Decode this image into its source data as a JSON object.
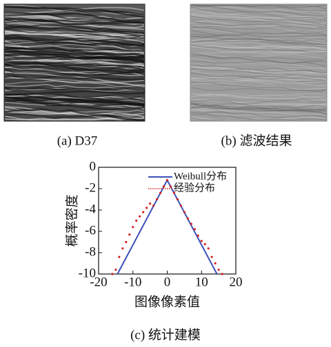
{
  "captions": {
    "a": "(a)  D37",
    "b": "(b)  滤波结果",
    "c": "(c)  统计建模"
  },
  "chart_data": {
    "type": "line",
    "xlabel": "图像像素值",
    "ylabel": "概率密度",
    "xlim": [
      -20,
      20
    ],
    "xticks": [
      -20,
      -10,
      0,
      10,
      20
    ],
    "ylim": [
      -10,
      0
    ],
    "yticks": [
      0,
      -2,
      -4,
      -6,
      -8,
      -10
    ],
    "legend": "upper right",
    "series": [
      {
        "name": "Weibull分布",
        "color": "#3a4fb8",
        "style": "line",
        "x": [
          -14.5,
          0,
          14.5
        ],
        "values": [
          -10,
          -1.2,
          -10
        ]
      },
      {
        "name": "经验分布",
        "color": "#d62020",
        "style": "scatter",
        "x": [
          -16,
          -15,
          -14,
          -13,
          -12,
          -11,
          -10,
          -9,
          -8,
          -7,
          -6,
          -5,
          -4,
          -3,
          -2,
          -1,
          0,
          1,
          2,
          3,
          4,
          5,
          6,
          7,
          8,
          9,
          10,
          11,
          12,
          13,
          14,
          15,
          16
        ],
        "values": [
          -10,
          -9.6,
          -8.4,
          -7.6,
          -7.0,
          -6.3,
          -5.6,
          -5.0,
          -4.6,
          -4.2,
          -3.8,
          -3.4,
          -3.6,
          -3.0,
          -2.4,
          -1.8,
          -1.2,
          -1.8,
          -2.4,
          -3.0,
          -3.6,
          -4.2,
          -4.8,
          -5.3,
          -5.8,
          -6.4,
          -6.9,
          -7.2,
          -7.6,
          -8.4,
          -9.0,
          -9.6,
          -10
        ]
      }
    ]
  }
}
